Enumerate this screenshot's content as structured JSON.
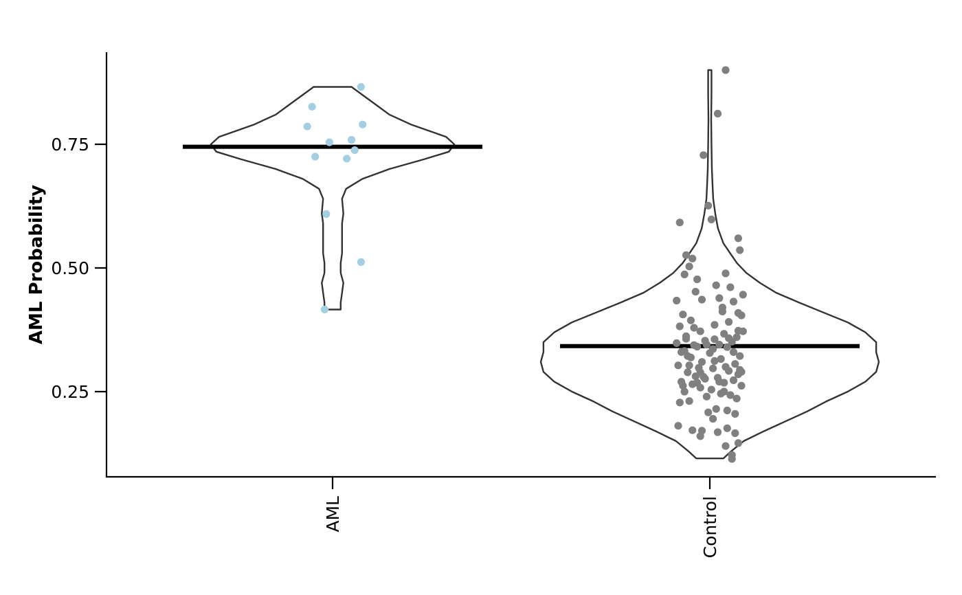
{
  "chart_data": {
    "type": "violin",
    "ylabel": "AML Probability",
    "xlabel": "",
    "ylim": [
      0.09,
      0.95
    ],
    "yticks": [
      0.25,
      0.5,
      0.75
    ],
    "ytick_labels": [
      "0.25",
      "0.50",
      "0.75"
    ],
    "categories": [
      "AML",
      "Control"
    ],
    "groups": [
      {
        "category": "AML",
        "color": "#a6cee3",
        "median": 0.745,
        "min": 0.416,
        "max": 0.866,
        "density": [
          [
            0.416,
            0.06
          ],
          [
            0.43,
            0.06
          ],
          [
            0.45,
            0.07
          ],
          [
            0.47,
            0.08
          ],
          [
            0.49,
            0.06
          ],
          [
            0.51,
            0.06
          ],
          [
            0.53,
            0.07
          ],
          [
            0.56,
            0.07
          ],
          [
            0.59,
            0.07
          ],
          [
            0.61,
            0.08
          ],
          [
            0.64,
            0.07
          ],
          [
            0.66,
            0.1
          ],
          [
            0.68,
            0.22
          ],
          [
            0.7,
            0.42
          ],
          [
            0.72,
            0.68
          ],
          [
            0.735,
            0.86
          ],
          [
            0.75,
            0.9
          ],
          [
            0.765,
            0.84
          ],
          [
            0.79,
            0.58
          ],
          [
            0.81,
            0.42
          ],
          [
            0.83,
            0.32
          ],
          [
            0.85,
            0.22
          ],
          [
            0.866,
            0.14
          ]
        ],
        "points": [
          [
            -0.13,
            0.826
          ],
          [
            -0.16,
            0.786
          ],
          [
            -0.02,
            0.754
          ],
          [
            0.12,
            0.759
          ],
          [
            0.19,
            0.79
          ],
          [
            0.18,
            0.866
          ],
          [
            -0.11,
            0.725
          ],
          [
            0.09,
            0.721
          ],
          [
            0.14,
            0.738
          ],
          [
            -0.04,
            0.609
          ],
          [
            0.18,
            0.512
          ],
          [
            -0.05,
            0.416
          ]
        ]
      },
      {
        "category": "Control",
        "color": "#808080",
        "median": 0.342,
        "min": 0.115,
        "max": 0.9,
        "density": [
          [
            0.115,
            0.1
          ],
          [
            0.13,
            0.16
          ],
          [
            0.15,
            0.25
          ],
          [
            0.17,
            0.4
          ],
          [
            0.19,
            0.56
          ],
          [
            0.21,
            0.72
          ],
          [
            0.23,
            0.86
          ],
          [
            0.25,
            1.02
          ],
          [
            0.27,
            1.15
          ],
          [
            0.29,
            1.23
          ],
          [
            0.31,
            1.25
          ],
          [
            0.33,
            1.23
          ],
          [
            0.35,
            1.23
          ],
          [
            0.37,
            1.15
          ],
          [
            0.39,
            1.02
          ],
          [
            0.41,
            0.84
          ],
          [
            0.43,
            0.66
          ],
          [
            0.45,
            0.49
          ],
          [
            0.47,
            0.37
          ],
          [
            0.49,
            0.27
          ],
          [
            0.51,
            0.2
          ],
          [
            0.53,
            0.15
          ],
          [
            0.55,
            0.1
          ],
          [
            0.58,
            0.06
          ],
          [
            0.61,
            0.04
          ],
          [
            0.64,
            0.025
          ],
          [
            0.67,
            0.02
          ],
          [
            0.7,
            0.015
          ],
          [
            0.75,
            0.012
          ],
          [
            0.8,
            0.01
          ],
          [
            0.85,
            0.012
          ],
          [
            0.9,
            0.012
          ]
        ],
        "points": [
          [
            0.1,
            0.9
          ],
          [
            0.05,
            0.812
          ],
          [
            -0.04,
            0.728
          ],
          [
            -0.01,
            0.626
          ],
          [
            -0.19,
            0.592
          ],
          [
            0.01,
            0.598
          ],
          [
            0.18,
            0.56
          ],
          [
            0.19,
            0.536
          ],
          [
            -0.15,
            0.526
          ],
          [
            -0.13,
            0.503
          ],
          [
            -0.11,
            0.519
          ],
          [
            -0.16,
            0.487
          ],
          [
            0.1,
            0.489
          ],
          [
            -0.08,
            0.477
          ],
          [
            0.13,
            0.461
          ],
          [
            0.21,
            0.446
          ],
          [
            -0.21,
            0.434
          ],
          [
            -0.05,
            0.436
          ],
          [
            0.06,
            0.439
          ],
          [
            0.15,
            0.432
          ],
          [
            0.08,
            0.412
          ],
          [
            -0.17,
            0.406
          ],
          [
            0.2,
            0.404
          ],
          [
            -0.12,
            0.394
          ],
          [
            0.12,
            0.391
          ],
          [
            0.03,
            0.385
          ],
          [
            -0.19,
            0.382
          ],
          [
            -0.1,
            0.379
          ],
          [
            0.18,
            0.373
          ],
          [
            -0.06,
            0.372
          ],
          [
            0.09,
            0.367
          ],
          [
            -0.15,
            0.362
          ],
          [
            0.17,
            0.36
          ],
          [
            0.03,
            0.356
          ],
          [
            -0.03,
            0.353
          ],
          [
            0.14,
            0.351
          ],
          [
            -0.21,
            0.348
          ],
          [
            0.06,
            0.345
          ],
          [
            -0.08,
            0.341
          ],
          [
            0.11,
            0.34
          ],
          [
            -0.16,
            0.332
          ],
          [
            0.0,
            0.328
          ],
          [
            0.19,
            0.322
          ],
          [
            -0.12,
            0.319
          ],
          [
            0.07,
            0.316
          ],
          [
            -0.05,
            0.31
          ],
          [
            0.16,
            0.306
          ],
          [
            -0.2,
            0.303
          ],
          [
            0.02,
            0.297
          ],
          [
            0.12,
            0.292
          ],
          [
            -0.14,
            0.289
          ],
          [
            0.18,
            0.285
          ],
          [
            -0.09,
            0.281
          ],
          [
            0.05,
            0.278
          ],
          [
            -0.03,
            0.276
          ],
          [
            0.15,
            0.273
          ],
          [
            -0.18,
            0.27
          ],
          [
            0.09,
            0.268
          ],
          [
            -0.11,
            0.265
          ],
          [
            0.2,
            0.262
          ],
          [
            -0.06,
            0.258
          ],
          [
            0.01,
            0.254
          ],
          [
            -0.16,
            0.25
          ],
          [
            0.07,
            0.246
          ],
          [
            0.13,
            0.243
          ],
          [
            -0.02,
            0.24
          ],
          [
            0.17,
            0.236
          ],
          [
            -0.13,
            0.231
          ],
          [
            -0.19,
            0.228
          ],
          [
            0.04,
            0.215
          ],
          [
            0.11,
            0.212
          ],
          [
            -0.01,
            0.208
          ],
          [
            0.16,
            0.205
          ],
          [
            0.02,
            0.195
          ],
          [
            -0.2,
            0.181
          ],
          [
            0.11,
            0.176
          ],
          [
            -0.11,
            0.172
          ],
          [
            -0.05,
            0.171
          ],
          [
            0.05,
            0.168
          ],
          [
            0.16,
            0.166
          ],
          [
            -0.06,
            0.16
          ],
          [
            0.18,
            0.146
          ],
          [
            0.1,
            0.14
          ],
          [
            0.14,
            0.122
          ],
          [
            0.14,
            0.114
          ],
          [
            -0.14,
            0.322
          ],
          [
            0.1,
            0.3
          ],
          [
            -0.07,
            0.298
          ],
          [
            0.19,
            0.294
          ],
          [
            -0.17,
            0.262
          ],
          [
            0.08,
            0.42
          ],
          [
            -0.09,
            0.452
          ],
          [
            0.04,
            0.465
          ],
          [
            0.21,
            0.372
          ],
          [
            -0.18,
            0.33
          ],
          [
            0.06,
            0.27
          ],
          [
            -0.04,
            0.28
          ],
          [
            0.12,
            0.358
          ],
          [
            -0.1,
            0.344
          ],
          [
            0.02,
            0.336
          ],
          [
            -0.13,
            0.303
          ],
          [
            0.15,
            0.33
          ],
          [
            -0.02,
            0.345
          ],
          [
            0.2,
            0.29
          ],
          [
            -0.08,
            0.268
          ],
          [
            0.09,
            0.25
          ],
          [
            0.18,
            0.409
          ],
          [
            -0.15,
            0.357
          ],
          [
            0.03,
            0.312
          ],
          [
            -0.06,
            0.289
          ]
        ]
      }
    ]
  }
}
